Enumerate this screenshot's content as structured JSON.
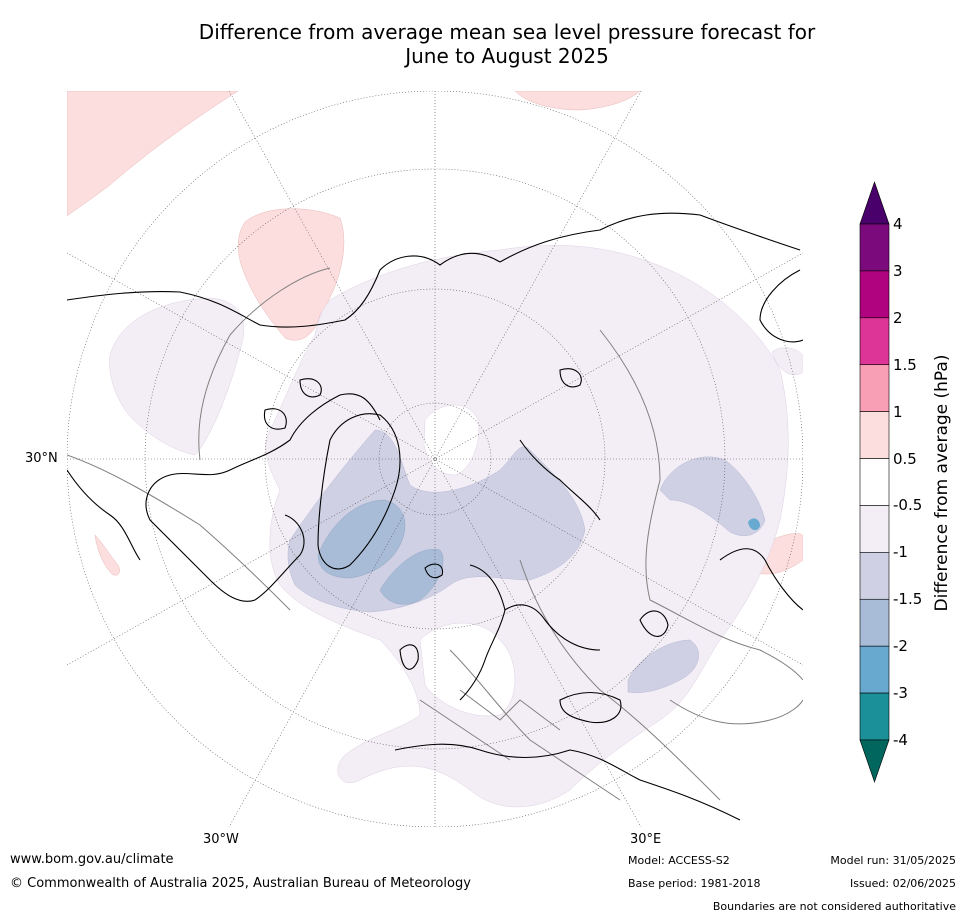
{
  "title": {
    "line1": "Difference from average mean sea level pressure forecast for",
    "line2": "June to August 2025"
  },
  "map": {
    "projection": "north-polar-stereographic",
    "gridline_labels": {
      "lon_west": "30°W",
      "lon_east": "30°E",
      "lat": "30°N"
    },
    "colors": {
      "coastline": "#000000",
      "borders": "#808080",
      "graticule": "#555555",
      "minus_0_5_to_minus_1": "#f3eef5",
      "minus_1_to_minus_1_5": "#cfd0e3",
      "minus_1_5_to_minus_2": "#a8bcd7",
      "minus_2_to_minus_3": "#67a9cf",
      "plus_0_5_to_1": "#fddede"
    }
  },
  "colorbar": {
    "label": "Difference from average (hPa)",
    "ticks": [
      "4",
      "3",
      "2",
      "1.5",
      "1",
      "0.5",
      "-0.5",
      "-1",
      "-1.5",
      "-2",
      "-3",
      "-4"
    ],
    "colors": [
      "#7b0a7d",
      "#b0037f",
      "#dd3497",
      "#f99fb5",
      "#fddede",
      "#ffffff",
      "#f3eef5",
      "#cfd0e3",
      "#a8bcd7",
      "#67a9cf",
      "#1c9099",
      "#016c59"
    ],
    "extend_max_color": "#49006a",
    "extend_min_color": "#01665e"
  },
  "footer": {
    "url": "www.bom.gov.au/climate",
    "copyright": "© Commonwealth of Australia 2025, Australian Bureau of Meteorology",
    "model": "Model: ACCESS-S2",
    "base_period": "Base period: 1981-2018",
    "model_run": "Model run: 31/05/2025",
    "issued": "Issued: 02/06/2025",
    "disclaimer": "Boundaries are not considered authoritative"
  }
}
